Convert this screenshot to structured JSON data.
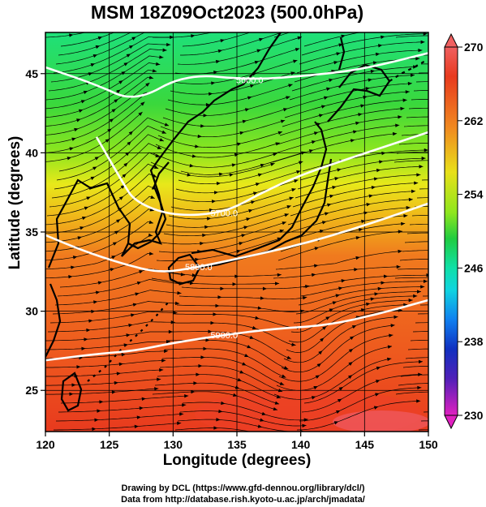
{
  "title": "MSM 18Z09Oct2023 (500.0hPa)",
  "axes": {
    "xlabel": "Longitude (degrees)",
    "ylabel": "Latitude  (degrees)",
    "x_ticks": [
      "120",
      "125",
      "130",
      "135",
      "140",
      "145",
      "150"
    ],
    "y_ticks": [
      "25",
      "30",
      "35",
      "40",
      "45"
    ],
    "x_range": [
      120,
      150
    ],
    "y_range": [
      22.4,
      47.6
    ]
  },
  "colorbar": {
    "ticks": [
      "270",
      "262",
      "254",
      "246",
      "238",
      "230"
    ],
    "range": [
      230,
      270
    ],
    "colors": [
      "#e020c0",
      "#6020c0",
      "#1030c0",
      "#1060e0",
      "#10a0f0",
      "#10d0d0",
      "#10e0a0",
      "#20d040",
      "#90e020",
      "#e0e010",
      "#f0c010",
      "#f09020",
      "#f06020",
      "#e04020",
      "#f08080"
    ]
  },
  "contours": [
    {
      "label": "5600.0",
      "points": [
        [
          120,
          45.4
        ],
        [
          124,
          44.3
        ],
        [
          127,
          43.2
        ],
        [
          131,
          45.0
        ],
        [
          136,
          44.6
        ],
        [
          141,
          44.9
        ],
        [
          145,
          45.3
        ],
        [
          150,
          46.3
        ]
      ]
    },
    {
      "label": "5700.0",
      "points": [
        [
          124,
          41.0
        ],
        [
          126,
          38.2
        ],
        [
          127,
          36.9
        ],
        [
          130,
          36.0
        ],
        [
          134,
          36.2
        ],
        [
          137,
          37.5
        ],
        [
          140,
          38.6
        ],
        [
          144,
          39.7
        ],
        [
          150,
          41.3
        ]
      ]
    },
    {
      "label": "5800.0",
      "points": [
        [
          120,
          34.8
        ],
        [
          123,
          33.8
        ],
        [
          126,
          33.0
        ],
        [
          129,
          32.4
        ],
        [
          132,
          32.8
        ],
        [
          135,
          33.3
        ],
        [
          140,
          34.2
        ],
        [
          145,
          35.4
        ],
        [
          150,
          36.8
        ]
      ]
    },
    {
      "label": "5900.0",
      "points": [
        [
          120,
          26.9
        ],
        [
          124,
          27.3
        ],
        [
          127,
          27.5
        ],
        [
          130,
          28.0
        ],
        [
          134,
          28.5
        ],
        [
          138,
          28.9
        ],
        [
          142,
          29.1
        ],
        [
          146,
          29.8
        ],
        [
          150,
          30.7
        ]
      ]
    }
  ],
  "credits": {
    "line1": "Drawing by DCL (https://www.gfd-dennou.org/library/dcl/)",
    "line2": "Data from http://database.rish.kyoto-u.ac.jp/arch/jmadata/"
  }
}
